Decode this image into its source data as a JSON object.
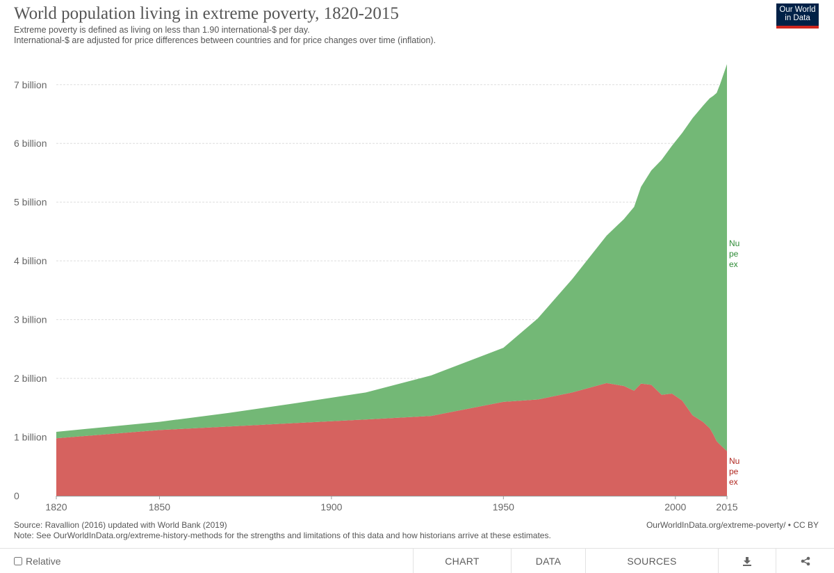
{
  "header": {
    "title": "World population living in extreme poverty, 1820-2015",
    "subtitle_line1": "Extreme poverty is defined as living on less than 1.90 international-$ per day.",
    "subtitle_line2": "International-$ are adjusted for price differences between countries and for price changes over time (inflation).",
    "logo_line1": "Our World",
    "logo_line2": "in Data"
  },
  "footer": {
    "source": "Source: Ravallion (2016) updated with World Bank (2019)",
    "note": "Note: See OurWorldInData.org/extreme-history-methods for the strengths and limitations of this data and how historians arrive at these estimates.",
    "url": "OurWorldInData.org/extreme-poverty/ • CC BY"
  },
  "controls": {
    "relative_label": "Relative",
    "chart_tab": "CHART",
    "data_tab": "DATA",
    "sources_tab": "SOURCES",
    "download_icon": "download-icon",
    "share_icon": "share-icon"
  },
  "chart_data": {
    "type": "area",
    "stacked": true,
    "xlim": [
      1820,
      2015
    ],
    "ylim": [
      0,
      7400000000
    ],
    "x_ticks": [
      1820,
      1850,
      1900,
      1950,
      2000,
      2015
    ],
    "y_ticks": [
      {
        "value": 0,
        "label": "0"
      },
      {
        "value": 1000000000,
        "label": "1 billion"
      },
      {
        "value": 2000000000,
        "label": "2 billion"
      },
      {
        "value": 3000000000,
        "label": "3 billion"
      },
      {
        "value": 4000000000,
        "label": "4 billion"
      },
      {
        "value": 5000000000,
        "label": "5 billion"
      },
      {
        "value": 6000000000,
        "label": "6 billion"
      },
      {
        "value": 7000000000,
        "label": "7 billion"
      }
    ],
    "grid": "horizontal",
    "x": [
      1820,
      1850,
      1870,
      1890,
      1910,
      1929,
      1950,
      1960,
      1970,
      1980,
      1985,
      1988,
      1990,
      1993,
      1996,
      1999,
      2002,
      2005,
      2008,
      2010,
      2011,
      2012,
      2013,
      2015
    ],
    "series": [
      {
        "name": "Number of people living in extreme poverty",
        "label_visible": "Nu\npe\nex",
        "color": "#d6625f",
        "values": [
          980000000,
          1120000000,
          1180000000,
          1240000000,
          1300000000,
          1360000000,
          1600000000,
          1640000000,
          1760000000,
          1920000000,
          1870000000,
          1790000000,
          1910000000,
          1890000000,
          1720000000,
          1740000000,
          1620000000,
          1370000000,
          1260000000,
          1150000000,
          1050000000,
          930000000,
          870000000,
          760000000
        ]
      },
      {
        "name": "Number of people not in extreme poverty",
        "label_visible": "Nu\npe\nex",
        "color": "#73b876",
        "values": [
          110000000,
          140000000,
          230000000,
          340000000,
          460000000,
          690000000,
          920000000,
          1380000000,
          1930000000,
          2510000000,
          2840000000,
          3130000000,
          3350000000,
          3650000000,
          4000000000,
          4220000000,
          4560000000,
          5060000000,
          5380000000,
          5620000000,
          5760000000,
          5930000000,
          6140000000,
          6590000000
        ]
      }
    ]
  }
}
